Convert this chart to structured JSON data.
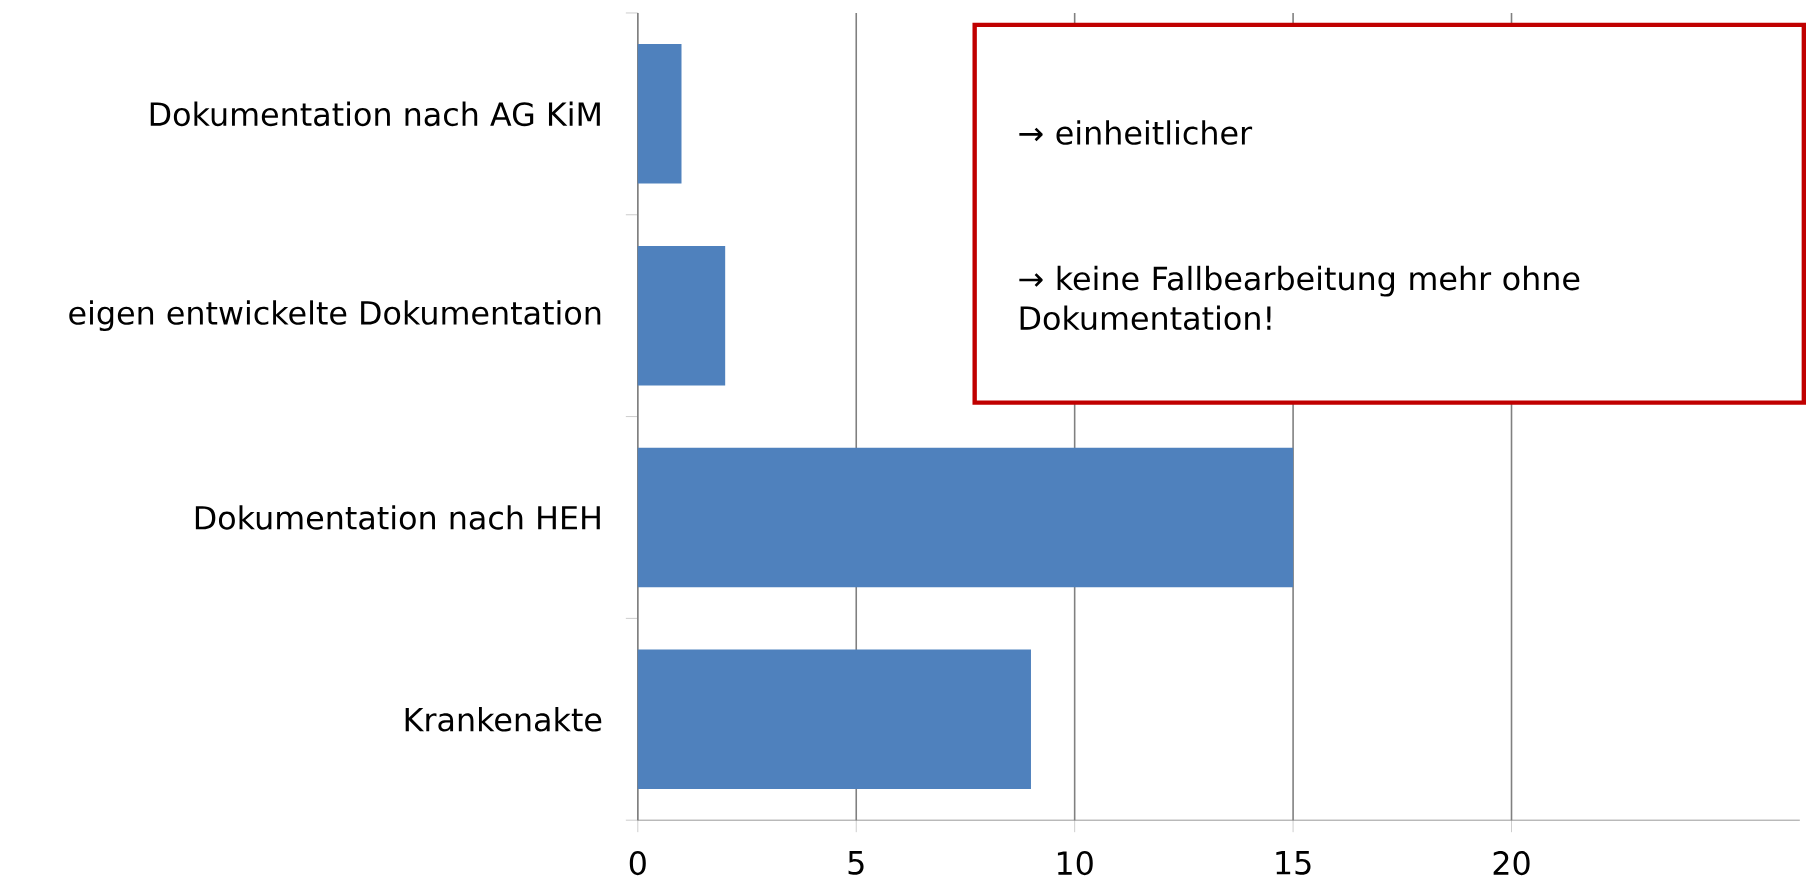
{
  "chart_data": {
    "type": "bar",
    "orientation": "horizontal",
    "categories": [
      "Dokumentation nach AG KiM",
      "eigen entwickelte Dokumentation",
      "Dokumentation nach HEH",
      "Krankenakte"
    ],
    "values": [
      1,
      2,
      15,
      9
    ],
    "color": "#4f81bd",
    "xlim": [
      0,
      26.6
    ],
    "xticks": [
      0,
      5,
      10,
      15,
      20
    ],
    "grid": "x",
    "annotations": [
      "→ einheitlicher",
      "→ keine Fallbearbeitung mehr ohne Dokumentation!"
    ]
  }
}
